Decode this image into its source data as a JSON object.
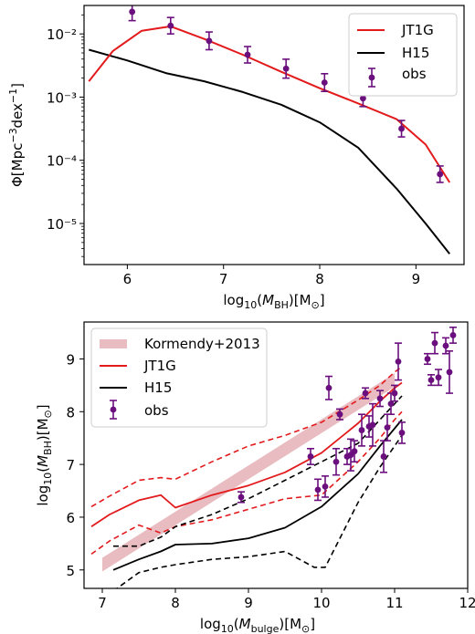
{
  "chart_data": [
    {
      "type": "line",
      "xlabel": "log10(M_BH)[M⊙]",
      "ylabel": "Φ[Mpc⁻³dex⁻¹]",
      "xlim": [
        5.55,
        9.5
      ],
      "ylim_log10": [
        -5.65,
        -1.55
      ],
      "y_scale": "log",
      "xticks": [
        6,
        7,
        8,
        9
      ],
      "yticks": [
        {
          "exp": -5,
          "label": "10⁻⁵"
        },
        {
          "exp": -4,
          "label": "10⁻⁴"
        },
        {
          "exp": -3,
          "label": "10⁻³"
        },
        {
          "exp": -2,
          "label": "10⁻²"
        }
      ],
      "legend_position": "top-right",
      "legend": [
        "JT1G",
        "H15",
        "obs"
      ],
      "series": [
        {
          "name": "JT1G",
          "color": "#e31a1c",
          "x": [
            5.6,
            5.85,
            6.15,
            6.45,
            6.8,
            7.2,
            7.6,
            8.0,
            8.4,
            8.8,
            9.1,
            9.35
          ],
          "log10_y": [
            -2.75,
            -2.27,
            -1.95,
            -1.88,
            -2.08,
            -2.33,
            -2.6,
            -2.86,
            -3.1,
            -3.35,
            -3.75,
            -4.35
          ]
        },
        {
          "name": "H15",
          "color": "#000000",
          "x": [
            5.6,
            6.0,
            6.4,
            6.8,
            7.2,
            7.6,
            8.0,
            8.4,
            8.8,
            9.1,
            9.35
          ],
          "log10_y": [
            -2.25,
            -2.42,
            -2.62,
            -2.75,
            -2.92,
            -3.12,
            -3.4,
            -3.8,
            -4.45,
            -5.0,
            -5.48
          ]
        },
        {
          "name": "obs",
          "color": "#6a0f7d",
          "x": [
            6.05,
            6.45,
            6.85,
            7.25,
            7.65,
            8.05,
            8.45,
            8.85,
            9.25
          ],
          "log10_y": [
            -1.65,
            -1.87,
            -2.11,
            -2.33,
            -2.55,
            -2.77,
            -3.02,
            -3.5,
            -4.22
          ],
          "err": [
            0.14,
            0.13,
            0.14,
            0.13,
            0.15,
            0.14,
            0.13,
            0.13,
            0.13
          ]
        }
      ]
    },
    {
      "type": "scatter",
      "xlabel": "log10(M_bulge)[M⊙]",
      "ylabel": "log10(M_BH)[M⊙]",
      "xlim": [
        6.75,
        12.0
      ],
      "ylim": [
        4.65,
        9.7
      ],
      "xticks": [
        7,
        8,
        9,
        10,
        11,
        12
      ],
      "yticks": [
        5,
        6,
        7,
        8,
        9
      ],
      "legend_position": "top-left",
      "legend": [
        "Kormendy+2013",
        "JT1G",
        "H15",
        "obs"
      ],
      "kormendy_band": {
        "name": "Kormendy+2013",
        "color": "#e8bcc0",
        "x": [
          7.0,
          11.0
        ],
        "center": [
          5.1,
          8.6
        ],
        "halfwidth": 0.13
      },
      "series": [
        {
          "name": "JT1G",
          "color": "#e31a1c",
          "x": [
            6.85,
            7.1,
            7.5,
            7.8,
            8.0,
            8.5,
            9.0,
            9.5,
            10.0,
            10.5,
            10.8,
            11.0,
            11.1
          ],
          "y": [
            5.82,
            6.05,
            6.32,
            6.42,
            6.18,
            6.42,
            6.6,
            6.85,
            7.22,
            7.78,
            8.2,
            8.45,
            8.55
          ]
        },
        {
          "name": "JT1G upper",
          "color": "#e31a1c",
          "dashed": true,
          "x": [
            6.85,
            7.1,
            7.5,
            7.8,
            8.0,
            8.5,
            9.0,
            9.5,
            10.0,
            10.5,
            10.8,
            11.0,
            11.1
          ],
          "y": [
            6.2,
            6.4,
            6.7,
            6.75,
            6.72,
            7.05,
            7.35,
            7.55,
            7.8,
            8.22,
            8.5,
            8.75,
            8.85
          ]
        },
        {
          "name": "JT1G lower",
          "color": "#e31a1c",
          "dashed": true,
          "x": [
            6.85,
            7.1,
            7.5,
            7.8,
            8.0,
            8.5,
            9.0,
            9.5,
            10.0,
            10.5,
            10.8,
            11.0,
            11.1
          ],
          "y": [
            5.3,
            5.55,
            5.85,
            5.7,
            5.82,
            5.95,
            6.15,
            6.35,
            6.42,
            7.05,
            7.5,
            7.85,
            8.0
          ]
        },
        {
          "name": "H15",
          "color": "#000000",
          "x": [
            7.15,
            7.5,
            7.8,
            8.0,
            8.5,
            9.0,
            9.5,
            10.0,
            10.5,
            10.8,
            11.1
          ],
          "y": [
            5.0,
            5.2,
            5.35,
            5.48,
            5.5,
            5.6,
            5.8,
            6.2,
            6.82,
            7.35,
            7.85
          ]
        },
        {
          "name": "H15 upper",
          "color": "#000000",
          "dashed": true,
          "x": [
            7.15,
            7.5,
            7.8,
            8.0,
            8.5,
            9.0,
            9.5,
            10.0,
            10.5,
            10.8,
            11.1
          ],
          "y": [
            5.45,
            5.45,
            5.62,
            5.82,
            6.05,
            6.35,
            6.7,
            7.05,
            7.4,
            7.85,
            8.3
          ]
        },
        {
          "name": "H15 lower",
          "color": "#000000",
          "dashed": true,
          "x": [
            7.15,
            7.5,
            7.8,
            8.0,
            8.5,
            9.0,
            9.5,
            9.9,
            10.05,
            10.5,
            10.8,
            11.1
          ],
          "y": [
            4.6,
            4.95,
            5.05,
            5.1,
            5.2,
            5.25,
            5.35,
            5.05,
            5.05,
            6.28,
            6.95,
            7.55
          ]
        },
        {
          "name": "obs",
          "color": "#6a0f7d",
          "x": [
            8.9,
            9.85,
            9.95,
            10.05,
            10.1,
            10.2,
            10.25,
            10.35,
            10.4,
            10.45,
            10.55,
            10.6,
            10.65,
            10.7,
            10.8,
            10.85,
            10.9,
            10.95,
            11.0,
            11.05,
            11.1,
            11.45,
            11.5,
            11.55,
            11.6,
            11.7,
            11.75,
            11.8
          ],
          "y": [
            6.38,
            7.15,
            6.52,
            6.58,
            8.45,
            7.05,
            7.95,
            7.15,
            7.18,
            7.25,
            7.65,
            8.35,
            7.72,
            7.75,
            8.25,
            7.15,
            7.7,
            8.15,
            8.35,
            8.95,
            7.6,
            9.0,
            8.6,
            9.3,
            8.65,
            9.25,
            8.75,
            9.45
          ],
          "err": [
            0.1,
            0.15,
            0.2,
            0.2,
            0.22,
            0.25,
            0.1,
            0.15,
            0.3,
            0.2,
            0.3,
            0.1,
            0.2,
            0.4,
            0.15,
            0.3,
            0.25,
            0.2,
            0.15,
            0.35,
            0.2,
            0.1,
            0.1,
            0.2,
            0.15,
            0.15,
            0.4,
            0.15
          ]
        }
      ]
    }
  ]
}
